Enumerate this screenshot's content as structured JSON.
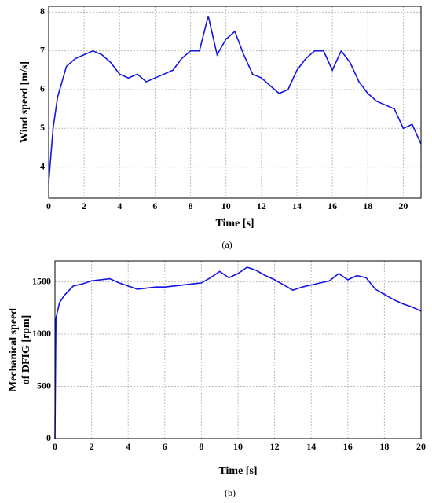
{
  "chart_data": [
    {
      "type": "line",
      "caption": "(a)",
      "x_label": "Time [s]",
      "y_label": "Wind speed [m/s]",
      "xlim": [
        0,
        21
      ],
      "xticks": [
        0,
        2,
        4,
        6,
        8,
        10,
        12,
        14,
        16,
        18,
        20
      ],
      "ylim": [
        3.2,
        8.15
      ],
      "yticks": [
        4,
        5,
        6,
        7,
        8
      ],
      "grid": true,
      "series": [
        {
          "color": "#1414e6",
          "x": [
            0,
            0.25,
            0.5,
            1,
            1.5,
            2,
            2.5,
            3,
            3.5,
            4,
            4.5,
            5,
            5.5,
            6,
            6.5,
            7,
            7.5,
            8,
            8.5,
            9,
            9.5,
            10,
            10.5,
            11,
            11.5,
            12,
            12.5,
            13,
            13.5,
            14,
            14.5,
            15,
            15.5,
            16,
            16.5,
            17,
            17.5,
            18,
            18.5,
            19,
            19.5,
            20,
            20.5,
            21
          ],
          "values": [
            3.6,
            5.0,
            5.8,
            6.6,
            6.8,
            6.9,
            7.0,
            6.9,
            6.7,
            6.4,
            6.3,
            6.4,
            6.2,
            6.3,
            6.4,
            6.5,
            6.8,
            7.0,
            7.0,
            7.9,
            6.9,
            7.3,
            7.5,
            6.9,
            6.4,
            6.3,
            6.1,
            5.9,
            6.0,
            6.5,
            6.8,
            7.0,
            7.0,
            6.5,
            7.0,
            6.7,
            6.2,
            5.9,
            5.7,
            5.6,
            5.5,
            5.0,
            5.1,
            4.6
          ]
        }
      ]
    },
    {
      "type": "line",
      "caption": "(b)",
      "x_label": "Time [s]",
      "y_label": [
        "Mechanical speed",
        "of DFIG [rpm]"
      ],
      "xlim": [
        0,
        20
      ],
      "xticks": [
        0,
        2,
        4,
        6,
        8,
        10,
        12,
        14,
        16,
        18,
        20
      ],
      "ylim": [
        0,
        1700
      ],
      "yticks": [
        0,
        500,
        1000,
        1500
      ],
      "grid": true,
      "series": [
        {
          "color": "#1414e6",
          "x": [
            0,
            0.05,
            0.25,
            0.5,
            1,
            1.5,
            2,
            2.5,
            3,
            3.5,
            4,
            4.5,
            5,
            5.5,
            6,
            6.5,
            7,
            7.5,
            8,
            8.5,
            9,
            9.5,
            10,
            10.5,
            11,
            11.5,
            12,
            12.5,
            13,
            13.5,
            14,
            14.5,
            15,
            15.5,
            16,
            16.5,
            17,
            17.5,
            18,
            18.5,
            19,
            19.5,
            20
          ],
          "values": [
            0,
            1150,
            1300,
            1370,
            1460,
            1480,
            1510,
            1520,
            1530,
            1490,
            1460,
            1430,
            1440,
            1450,
            1450,
            1460,
            1470,
            1480,
            1490,
            1540,
            1600,
            1540,
            1580,
            1640,
            1610,
            1560,
            1520,
            1470,
            1420,
            1450,
            1470,
            1490,
            1510,
            1580,
            1520,
            1560,
            1540,
            1430,
            1380,
            1330,
            1290,
            1260,
            1220
          ]
        }
      ]
    }
  ]
}
